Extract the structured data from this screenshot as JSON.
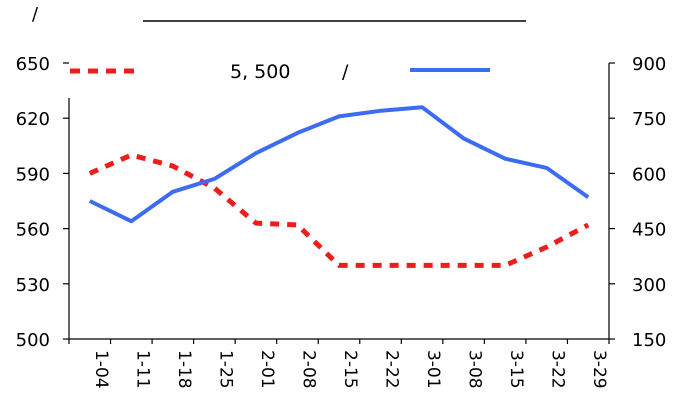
{
  "header": {
    "left_mark": "/",
    "legend_text_a": "5, 500",
    "legend_text_b": "/"
  },
  "colors": {
    "red_series": "#ee1c1c",
    "blue_series": "#3b6cf2",
    "axis": "#000000"
  },
  "chart_data": {
    "type": "line",
    "categories": [
      "1-04",
      "1-11",
      "1-18",
      "1-25",
      "2-01",
      "2-08",
      "2-15",
      "2-22",
      "3-01",
      "3-08",
      "3-15",
      "3-22",
      "3-29"
    ],
    "series": [
      {
        "name": "5, 500",
        "axis": "left",
        "style": "dotted",
        "color": "#ee1c1c",
        "values": [
          590,
          600,
          594,
          582,
          563,
          562,
          540,
          540,
          540,
          540,
          540,
          550,
          562
        ]
      },
      {
        "axis": "right",
        "style": "solid",
        "color": "#3b6cf2",
        "values": [
          525,
          470,
          550,
          585,
          655,
          710,
          755,
          770,
          780,
          695,
          640,
          615,
          535
        ]
      }
    ],
    "y_left": {
      "min": 500,
      "max": 650,
      "ticks": [
        500,
        530,
        560,
        590,
        620,
        650
      ]
    },
    "y_right": {
      "min": 150,
      "max": 900,
      "ticks": [
        150,
        300,
        450,
        600,
        750,
        900
      ]
    },
    "grid": false,
    "legend": "top"
  }
}
